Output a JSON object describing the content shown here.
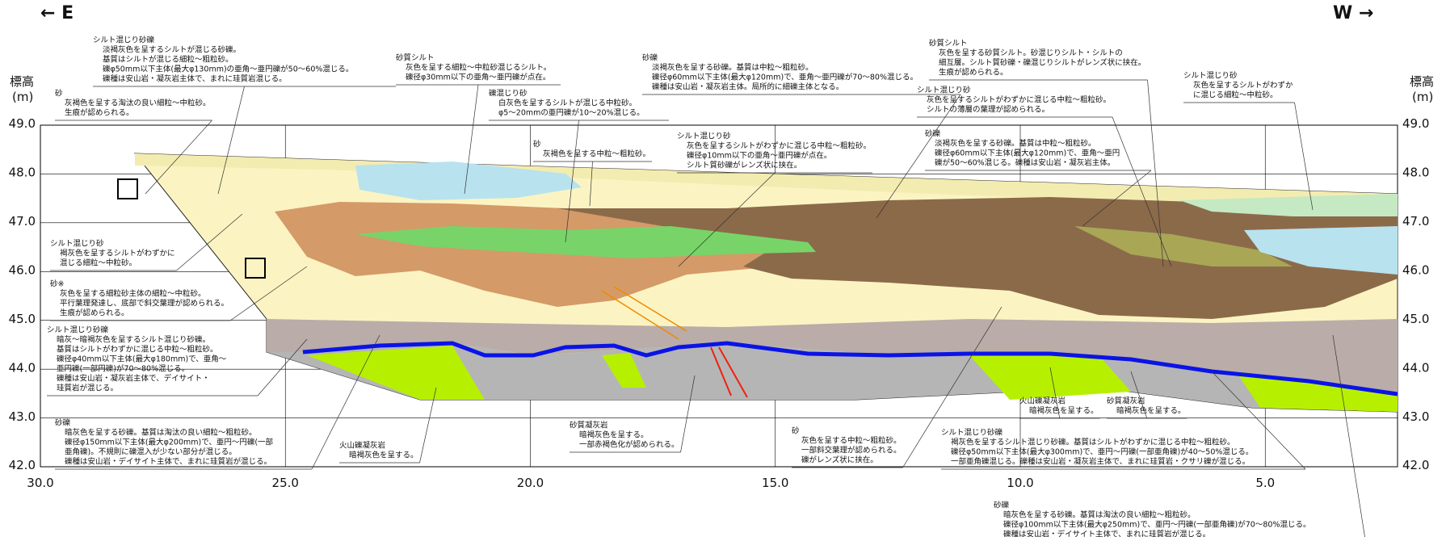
{
  "header": {
    "left": "← E",
    "right": "W →",
    "y_axis_left": [
      "標高",
      "(m)"
    ],
    "y_axis_right": [
      "標高",
      "(m)"
    ]
  },
  "axes": {
    "xlim": [
      30,
      2.3
    ],
    "ylim": [
      42,
      49
    ],
    "xticks": [
      {
        "value": 30,
        "label": "30.0"
      },
      {
        "value": 25,
        "label": "25.0"
      },
      {
        "value": 20,
        "label": "20.0"
      },
      {
        "value": 15,
        "label": "15.0"
      },
      {
        "value": 10,
        "label": "10.0"
      },
      {
        "value": 5,
        "label": "5.0"
      }
    ],
    "yticks": [
      {
        "value": 49,
        "label": "49.0"
      },
      {
        "value": 48,
        "label": "48.0"
      },
      {
        "value": 47,
        "label": "47.0"
      },
      {
        "value": 46,
        "label": "46.0"
      },
      {
        "value": 45,
        "label": "45.0"
      },
      {
        "value": 44,
        "label": "44.0"
      },
      {
        "value": 43,
        "label": "43.0"
      },
      {
        "value": 42,
        "label": "42.0"
      }
    ]
  },
  "annotations": [
    {
      "title": "シルト混じり砂礫",
      "lines": [
        "淡褐灰色を呈するシルトが混じる砂礫。",
        "基質はシルトが混じる細粒～粗粒砂。",
        "礫φ50mm以下主体(最大φ130mm)の亜角～亜円礫が50～60%混じる。",
        "礫種は安山岩・凝灰岩主体で、まれに珪質岩混じる。"
      ]
    },
    {
      "title": "砂",
      "lines": [
        "灰褐色を呈する淘汰の良い細粒～中粒砂。",
        "生痕が認められる。"
      ]
    },
    {
      "title": "砂質シルト",
      "lines": [
        "灰色を呈する細粒～中粒砂混じるシルト。",
        "礫径φ30mm以下の亜角～亜円礫が点在。"
      ]
    },
    {
      "title": "礫混じり砂",
      "lines": [
        "白灰色を呈するシルトが混じる中粒砂。",
        "φ5～20mmの亜円礫が10～20%混じる。"
      ]
    },
    {
      "title": "砂礫",
      "lines": [
        "淡褐灰色を呈する砂礫。基質は中粒～粗粒砂。",
        "礫径φ60mm以下主体(最大φ120mm)で、亜角～亜円礫が70～80%混じる。",
        "礫種は安山岩・凝灰岩主体。局所的に細礫主体となる。"
      ]
    },
    {
      "title": "砂",
      "lines": [
        "灰褐色を呈する中粒～粗粒砂。"
      ]
    },
    {
      "title": "シルト混じり砂",
      "lines": [
        "灰色を呈するシルトがわずかに混じる中粒～粗粒砂。",
        "礫径φ10mm以下の亜角～亜円礫が点在。",
        "シルト質砂礫がレンズ状に挟在。"
      ]
    },
    {
      "title": "砂質シルト",
      "lines": [
        "灰色を呈する砂質シルト。砂混じりシルト・シルトの",
        "細互層。シルト質砂礫・礫混じりシルトがレンズ状に挟在。",
        "生痕が認められる。"
      ]
    },
    {
      "title": "シルト混じり砂",
      "lines": [
        "灰色を呈するシルトがわずかに混じる中粒～粗粒砂。",
        "シルトの薄層の葉理が認められる。"
      ]
    },
    {
      "title": "砂礫",
      "lines": [
        "淡褐灰色を呈する砂礫。基質は中粒～粗粒砂。",
        "礫径φ60mm以下主体(最大φ120mm)で、亜角～亜円",
        "礫が50～60%混じる。礫種は安山岩・凝灰岩主体。"
      ]
    },
    {
      "title": "シルト混じり砂",
      "lines": [
        "灰色を呈するシルトがわずか",
        "に混じる細粒～中粒砂。"
      ]
    },
    {
      "title": "シルト混じり砂",
      "lines": [
        "褐灰色を呈するシルトがわずかに",
        "混じる細粒～中粒砂。"
      ]
    },
    {
      "title": "砂※",
      "lines": [
        "灰色を呈する細粒砂主体の細粒～中粒砂。",
        "平行葉理発達し、底部で斜交葉理が認められる。",
        "生痕が認められる。"
      ]
    },
    {
      "title": "シルト混じり砂礫",
      "lines": [
        "暗灰～暗褐灰色を呈するシルト混じり砂礫。",
        "基質はシルトがわずかに混じる中粒～粗粒砂。",
        "礫径φ40mm以下主体(最大φ180mm)で、亜角～",
        "亜円礫(一部円礫)が70～80%混じる。",
        "礫種は安山岩・凝灰岩主体で、デイサイト・",
        "珪質岩が混じる。"
      ]
    },
    {
      "title": "砂礫",
      "lines": [
        "暗灰色を呈する砂礫。基質は淘汰の良い細粒～粗粒砂。",
        "礫径φ150mm以下主体(最大φ200mm)で、亜円～円礫(一部",
        "亜角礫)。不規則に礫混入が少ない部分が混じる。",
        "礫種は安山岩・デイサイト主体で、まれに珪質岩が混じる。"
      ]
    },
    {
      "title": "火山礫凝灰岩",
      "lines": [
        "暗褐灰色を呈する。"
      ]
    },
    {
      "title": "砂質凝灰岩",
      "lines": [
        "暗褐灰色を呈する。",
        "一部赤褐色化が認められる。"
      ]
    },
    {
      "title": "砂",
      "lines": [
        "灰色を呈する中粒～粗粒砂。",
        "一部斜交葉理が認められる。",
        "礫がレンズ状に挟在。"
      ]
    },
    {
      "title": "シルト混じり砂礫",
      "lines": [
        "褐灰色を呈するシルト混じり砂礫。基質はシルトがわずかに混じる中粒～粗粒砂。",
        "礫径φ50mm以下主体(最大φ300mm)で、亜円～円礫(一部亜角礫)が40～50%混じる。",
        "一部亜角礫混じる。礫種は安山岩・凝灰岩主体で、まれに珪質岩・クサリ礫が混じる。"
      ]
    },
    {
      "title": "火山礫凝灰岩",
      "lines": [
        "暗褐灰色を呈する。"
      ]
    },
    {
      "title": "砂質凝灰岩",
      "lines": [
        "暗褐灰色を呈する。"
      ]
    },
    {
      "title": "砂礫",
      "lines": [
        "暗灰色を呈する砂礫。基質は淘汰の良い細粒～粗粒砂。",
        "礫径φ100mm以下主体(最大φ250mm)で、亜円～円礫(一部亜角礫)が70～80%混じる。",
        "礫種は安山岩・デイサイト主体で、まれに珪質岩が混じる。"
      ]
    }
  ]
}
